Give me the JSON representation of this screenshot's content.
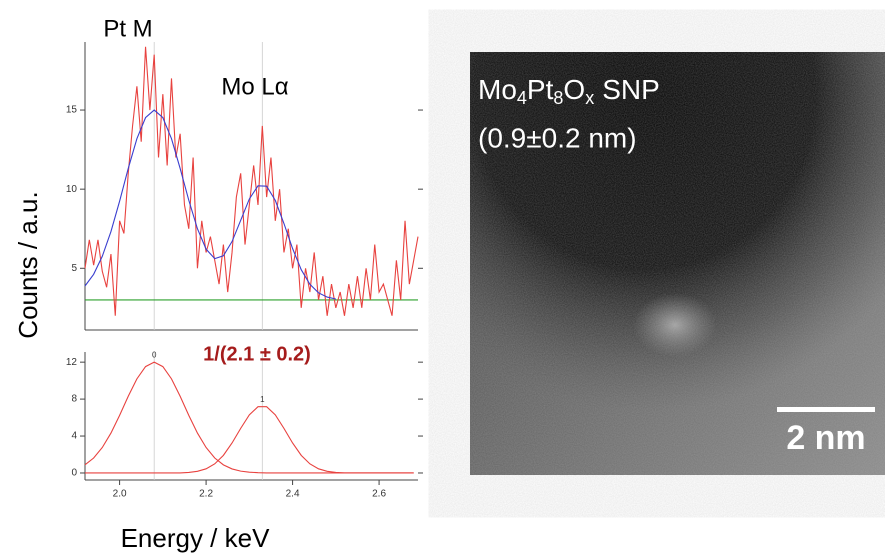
{
  "figure": {
    "ylabel": "Counts / a.u.",
    "xlabel": "Energy / keV"
  },
  "chart_data": [
    {
      "type": "line",
      "annotations": [
        "Pt M",
        "Mo Lα"
      ],
      "xlim": [
        1.92,
        2.69
      ],
      "ylim": [
        1.1,
        19.3
      ],
      "yticks": [
        5,
        10,
        15
      ],
      "peak_positions": [
        2.08,
        2.33
      ],
      "baseline": {
        "value": 3,
        "color": "#2ca02c"
      },
      "series": [
        {
          "color": "#e8423f",
          "x": [
            1.92,
            1.93,
            1.94,
            1.95,
            1.96,
            1.97,
            1.98,
            1.99,
            2.0,
            2.01,
            2.02,
            2.03,
            2.04,
            2.05,
            2.06,
            2.07,
            2.08,
            2.09,
            2.1,
            2.11,
            2.12,
            2.13,
            2.14,
            2.15,
            2.16,
            2.17,
            2.18,
            2.19,
            2.2,
            2.21,
            2.22,
            2.23,
            2.24,
            2.25,
            2.26,
            2.27,
            2.28,
            2.29,
            2.3,
            2.31,
            2.32,
            2.33,
            2.34,
            2.35,
            2.36,
            2.37,
            2.38,
            2.39,
            2.4,
            2.41,
            2.42,
            2.43,
            2.44,
            2.45,
            2.46,
            2.47,
            2.48,
            2.49,
            2.5,
            2.51,
            2.52,
            2.53,
            2.54,
            2.55,
            2.56,
            2.57,
            2.58,
            2.59,
            2.6,
            2.61,
            2.62,
            2.63,
            2.64,
            2.65,
            2.66,
            2.67,
            2.68,
            2.69
          ],
          "values": [
            5.0,
            6.8,
            5.2,
            6.8,
            4.8,
            3.8,
            5.9,
            2.0,
            8.0,
            7.2,
            11.0,
            14.0,
            16.5,
            13.0,
            19.0,
            15.0,
            18.5,
            12.0,
            16.0,
            11.5,
            17.0,
            12.0,
            13.5,
            9.0,
            7.5,
            12.0,
            5.0,
            8.0,
            6.0,
            7.0,
            5.5,
            4.0,
            6.5,
            3.5,
            6.0,
            9.5,
            11.0,
            6.5,
            9.0,
            11.5,
            9.0,
            14.0,
            9.5,
            12.0,
            8.0,
            10.0,
            6.0,
            7.5,
            5.0,
            6.5,
            2.5,
            5.0,
            3.5,
            6.0,
            3.0,
            4.5,
            2.0,
            4.0,
            2.5,
            3.5,
            2.0,
            4.0,
            2.5,
            4.5,
            2.5,
            5.0,
            3.0,
            6.5,
            3.5,
            4.0,
            3.0,
            2.0,
            5.5,
            3.0,
            8.0,
            4.0,
            5.5,
            7.0
          ]
        },
        {
          "color": "#3a3fcf",
          "x": [
            1.92,
            1.94,
            1.96,
            1.98,
            2.0,
            2.02,
            2.04,
            2.06,
            2.08,
            2.1,
            2.12,
            2.14,
            2.16,
            2.18,
            2.2,
            2.22,
            2.24,
            2.26,
            2.28,
            2.3,
            2.32,
            2.34,
            2.36,
            2.38,
            2.4,
            2.42,
            2.44,
            2.46,
            2.48,
            2.5,
            2.52,
            2.54,
            2.56,
            2.58,
            2.6,
            2.62,
            2.64,
            2.66,
            2.68
          ],
          "values": [
            3.88,
            4.62,
            5.76,
            7.32,
            9.24,
            11.31,
            13.19,
            14.52,
            15.0,
            14.52,
            13.19,
            11.31,
            9.3,
            7.5,
            6.21,
            5.61,
            5.79,
            6.69,
            8.03,
            9.38,
            10.21,
            10.19,
            9.29,
            7.83,
            6.25,
            4.91,
            3.99,
            3.45,
            3.18,
            3.06,
            null,
            null,
            null,
            null,
            null,
            null,
            null,
            null,
            null
          ]
        }
      ]
    },
    {
      "type": "line",
      "annotations": [
        "1/(2.1 ± 0.2)"
      ],
      "xlim": [
        1.92,
        2.69
      ],
      "ylim": [
        -0.76,
        13.1
      ],
      "yticks": [
        0,
        4,
        8,
        12
      ],
      "xticks": [
        {
          "value": 2,
          "label": "2.0"
        },
        2.2,
        2.4,
        2.6
      ],
      "peak_positions": [
        2.08,
        2.33
      ],
      "peak_labels": [
        "0",
        "1"
      ],
      "x": [
        1.92,
        1.94,
        1.96,
        1.98,
        2.0,
        2.02,
        2.04,
        2.06,
        2.08,
        2.1,
        2.12,
        2.14,
        2.16,
        2.18,
        2.2,
        2.22,
        2.24,
        2.26,
        2.28,
        2.3,
        2.32,
        2.34,
        2.36,
        2.38,
        2.4,
        2.42,
        2.44,
        2.46,
        2.48,
        2.5,
        2.52,
        2.54,
        2.56,
        2.58,
        2.6,
        2.62,
        2.64,
        2.66,
        2.68
      ],
      "series": [
        {
          "color": "#e8423f",
          "values": [
            0.88,
            1.62,
            2.76,
            4.32,
            6.24,
            8.31,
            10.19,
            11.52,
            12,
            11.52,
            10.19,
            8.31,
            6.24,
            4.32,
            2.76,
            1.62,
            0.88,
            0.44,
            0.2,
            0.09,
            0.03,
            0.01,
            0,
            0,
            0,
            0,
            0,
            0,
            0,
            0,
            0,
            0,
            0,
            0,
            0,
            0,
            0,
            0,
            0
          ]
        },
        {
          "color": "#e8423f",
          "values": [
            0,
            0,
            0,
            0,
            0,
            0,
            0,
            0,
            0,
            0,
            0,
            0,
            0.06,
            0.18,
            0.45,
            0.99,
            1.91,
            3.25,
            4.83,
            6.29,
            7.18,
            7.18,
            6.29,
            4.83,
            3.25,
            1.91,
            0.99,
            0.45,
            0.18,
            0.06,
            0,
            0,
            0,
            0,
            0,
            0,
            0,
            0,
            0
          ]
        }
      ]
    }
  ],
  "image": {
    "title_parts": [
      "Mo",
      "4",
      "Pt",
      "8",
      "O",
      "x",
      "SNP"
    ],
    "size_label": "(0.9±0.2 nm)",
    "scale_label": "2 nm"
  }
}
